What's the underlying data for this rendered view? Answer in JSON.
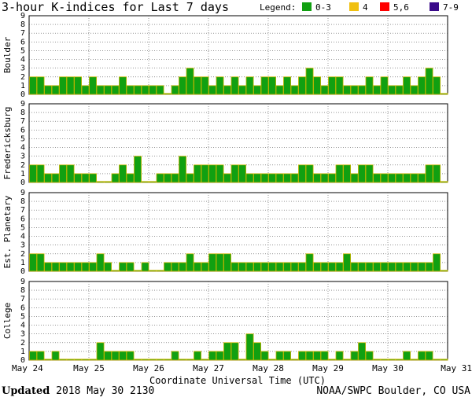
{
  "title": "3-hour K-indices for Last 7 days",
  "legend": {
    "label": "Legend:",
    "items": [
      {
        "label": "0-3",
        "color": "#11a011"
      },
      {
        "label": "4",
        "color": "#f0c010"
      },
      {
        "label": "5,6",
        "color": "#ff0000"
      },
      {
        "label": "7-9",
        "color": "#3a0a8a"
      }
    ]
  },
  "footer": {
    "updated_label": "Updated",
    "updated_value": "2018 May 30 2130",
    "credit": "NOAA/SWPC Boulder, CO USA"
  },
  "chart_data": {
    "type": "bar",
    "xlabel": "Coordinate Universal Time (UTC)",
    "x_tick_labels": [
      "May 24",
      "May 25",
      "May 26",
      "May 27",
      "May 28",
      "May 29",
      "May 30",
      "May 31"
    ],
    "ylim": [
      0,
      9
    ],
    "y_ticks": [
      0,
      1,
      2,
      3,
      4,
      5,
      6,
      7,
      8,
      9
    ],
    "bar_color": "#11a011",
    "panels": [
      {
        "name": "Boulder",
        "values": [
          2,
          2,
          1,
          1,
          2,
          2,
          2,
          1,
          2,
          1,
          1,
          1,
          2,
          1,
          1,
          1,
          1,
          1,
          0,
          1,
          2,
          3,
          2,
          2,
          1,
          2,
          1,
          2,
          1,
          2,
          1,
          2,
          2,
          1,
          2,
          1,
          2,
          3,
          2,
          1,
          2,
          2,
          1,
          1,
          1,
          2,
          1,
          2,
          1,
          1,
          2,
          1,
          2,
          3,
          2,
          0
        ]
      },
      {
        "name": "Fredericksburg",
        "values": [
          2,
          2,
          1,
          1,
          2,
          2,
          1,
          1,
          1,
          0,
          0,
          1,
          2,
          1,
          3,
          0,
          0,
          1,
          1,
          1,
          3,
          1,
          2,
          2,
          2,
          2,
          1,
          2,
          2,
          1,
          1,
          1,
          1,
          1,
          1,
          1,
          2,
          2,
          1,
          1,
          1,
          2,
          2,
          1,
          2,
          2,
          1,
          1,
          1,
          1,
          1,
          1,
          1,
          2,
          2,
          0
        ]
      },
      {
        "name": "Est. Planetary",
        "values": [
          2,
          2,
          1,
          1,
          1,
          1,
          1,
          1,
          1,
          2,
          1,
          0,
          1,
          1,
          0,
          1,
          0,
          0,
          1,
          1,
          1,
          2,
          1,
          1,
          2,
          2,
          2,
          1,
          1,
          1,
          1,
          1,
          1,
          1,
          1,
          1,
          1,
          2,
          1,
          1,
          1,
          1,
          2,
          1,
          1,
          1,
          1,
          1,
          1,
          1,
          1,
          1,
          1,
          1,
          2,
          0
        ]
      },
      {
        "name": "College",
        "values": [
          1,
          1,
          0,
          1,
          0,
          0,
          0,
          0,
          0,
          2,
          1,
          1,
          1,
          1,
          0,
          0,
          0,
          0,
          0,
          1,
          0,
          0,
          1,
          0,
          1,
          1,
          2,
          2,
          0,
          3,
          2,
          1,
          0,
          1,
          1,
          0,
          1,
          1,
          1,
          1,
          0,
          1,
          0,
          1,
          2,
          1,
          0,
          0,
          0,
          0,
          1,
          0,
          1,
          1,
          0,
          0
        ]
      }
    ]
  }
}
